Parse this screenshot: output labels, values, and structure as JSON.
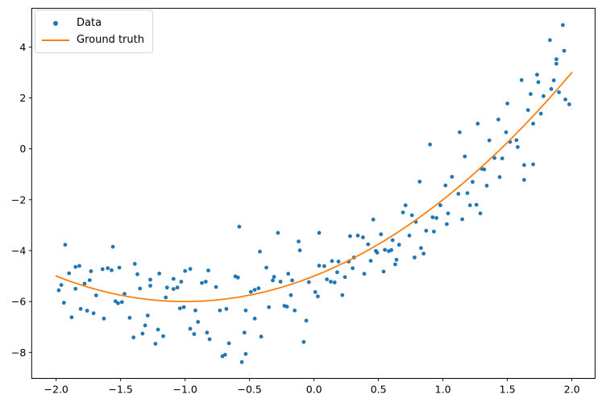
{
  "figure": {
    "background": "#ffffff",
    "accent_blue": "#1f77b4",
    "accent_orange": "#ff7f0e"
  },
  "chart_data": {
    "type": "scatter",
    "title": "",
    "xlabel": "",
    "ylabel": "",
    "grid": false,
    "legend_position": "upper left",
    "xlim": [
      -2.19,
      2.18
    ],
    "ylim": [
      -9.02,
      5.52
    ],
    "x_ticks": {
      "values": [
        -2.0,
        -1.5,
        -1.0,
        -0.5,
        0.0,
        0.5,
        1.0,
        1.5,
        2.0
      ],
      "labels": [
        "−2.0",
        "−1.5",
        "−1.0",
        "−0.5",
        "0.0",
        "0.5",
        "1.0",
        "1.5",
        "2.0"
      ]
    },
    "y_ticks": {
      "values": [
        4,
        2,
        0,
        -2,
        -4,
        -6,
        -8
      ],
      "labels": [
        "4",
        "2",
        "0",
        "−2",
        "−4",
        "−6",
        "−8"
      ]
    },
    "series": [
      {
        "name": "Data",
        "type": "scatter",
        "color": "#1f77b4",
        "marker": "dot",
        "points": [
          [
            -1.93,
            -3.77
          ],
          [
            -1.56,
            -3.85
          ],
          [
            -1.9,
            -4.89
          ],
          [
            -1.85,
            -4.64
          ],
          [
            -1.82,
            -4.6
          ],
          [
            -1.73,
            -4.81
          ],
          [
            -1.64,
            -4.73
          ],
          [
            -1.6,
            -4.69
          ],
          [
            -1.57,
            -4.77
          ],
          [
            -1.51,
            -4.67
          ],
          [
            -1.39,
            -4.52
          ],
          [
            -1.37,
            -4.93
          ],
          [
            -1.98,
            -5.56
          ],
          [
            -1.96,
            -5.35
          ],
          [
            -1.85,
            -5.5
          ],
          [
            -1.78,
            -5.3
          ],
          [
            -1.74,
            -5.16
          ],
          [
            -1.69,
            -5.76
          ],
          [
            -1.54,
            -5.99
          ],
          [
            -1.52,
            -6.07
          ],
          [
            -1.49,
            -6.02
          ],
          [
            -1.47,
            -5.7
          ],
          [
            -1.35,
            -5.49
          ],
          [
            -1.27,
            -5.38
          ],
          [
            -1.27,
            -5.14
          ],
          [
            -1.2,
            -4.9
          ],
          [
            -1.94,
            -6.05
          ],
          [
            -1.88,
            -6.62
          ],
          [
            -1.81,
            -6.29
          ],
          [
            -1.76,
            -6.36
          ],
          [
            -1.71,
            -6.46
          ],
          [
            -1.63,
            -6.67
          ],
          [
            -1.43,
            -6.64
          ],
          [
            -1.4,
            -7.41
          ],
          [
            -1.33,
            -7.26
          ],
          [
            -1.31,
            -6.94
          ],
          [
            -1.29,
            -6.55
          ],
          [
            -1.23,
            -7.66
          ],
          [
            -1.21,
            -7.1
          ],
          [
            -1.17,
            -7.36
          ],
          [
            -1.14,
            -5.45
          ],
          [
            -1.09,
            -5.51
          ],
          [
            -1.15,
            -5.84
          ],
          [
            -1.09,
            -5.11
          ],
          [
            -0.58,
            -3.06
          ],
          [
            -0.28,
            -3.3
          ],
          [
            -0.12,
            -3.64
          ],
          [
            -0.11,
            -3.99
          ],
          [
            -0.42,
            -4.04
          ],
          [
            -0.37,
            -4.67
          ],
          [
            -1.0,
            -4.8
          ],
          [
            -0.96,
            -4.72
          ],
          [
            -0.82,
            -4.78
          ],
          [
            -1.03,
            -5.22
          ],
          [
            -1.06,
            -5.45
          ],
          [
            -0.87,
            -5.27
          ],
          [
            -0.84,
            -5.22
          ],
          [
            -0.76,
            -5.43
          ],
          [
            -0.61,
            -5.01
          ],
          [
            -0.59,
            -5.06
          ],
          [
            -0.49,
            -5.62
          ],
          [
            -0.46,
            -5.54
          ],
          [
            -0.43,
            -5.48
          ],
          [
            -0.32,
            -5.17
          ],
          [
            -0.31,
            -5.03
          ],
          [
            -0.26,
            -5.22
          ],
          [
            -0.2,
            -4.91
          ],
          [
            -0.17,
            -5.17
          ],
          [
            -0.18,
            -5.75
          ],
          [
            -0.04,
            -5.24
          ],
          [
            0.01,
            -5.63
          ],
          [
            0.03,
            -5.8
          ],
          [
            -1.04,
            -6.27
          ],
          [
            -1.01,
            -6.22
          ],
          [
            -0.92,
            -6.35
          ],
          [
            -0.73,
            -6.35
          ],
          [
            -0.68,
            -6.29
          ],
          [
            -0.53,
            -6.35
          ],
          [
            -0.35,
            -6.22
          ],
          [
            -0.23,
            -6.17
          ],
          [
            -0.21,
            -6.2
          ],
          [
            -0.15,
            -6.35
          ],
          [
            -0.9,
            -6.8
          ],
          [
            -0.96,
            -7.07
          ],
          [
            -0.93,
            -7.28
          ],
          [
            -0.83,
            -7.22
          ],
          [
            -0.81,
            -7.48
          ],
          [
            -0.54,
            -7.22
          ],
          [
            -0.41,
            -7.38
          ],
          [
            -0.46,
            -6.67
          ],
          [
            -0.06,
            -6.75
          ],
          [
            -0.66,
            -7.64
          ],
          [
            -0.71,
            -8.15
          ],
          [
            -0.69,
            -8.09
          ],
          [
            -0.56,
            -8.38
          ],
          [
            -0.53,
            -8.06
          ],
          [
            -0.08,
            -7.59
          ],
          [
            0.71,
            -2.22
          ],
          [
            0.69,
            -2.5
          ],
          [
            0.76,
            -2.61
          ],
          [
            0.98,
            -2.22
          ],
          [
            0.92,
            -2.69
          ],
          [
            0.95,
            -2.72
          ],
          [
            1.04,
            -2.54
          ],
          [
            0.79,
            -2.87
          ],
          [
            1.03,
            -2.96
          ],
          [
            0.46,
            -2.78
          ],
          [
            0.87,
            -3.22
          ],
          [
            0.93,
            -3.25
          ],
          [
            0.04,
            -3.3
          ],
          [
            0.28,
            -3.43
          ],
          [
            0.34,
            -3.41
          ],
          [
            0.38,
            -3.48
          ],
          [
            0.52,
            -3.36
          ],
          [
            0.61,
            -3.59
          ],
          [
            0.74,
            -3.41
          ],
          [
            0.66,
            -3.77
          ],
          [
            0.42,
            -3.75
          ],
          [
            0.48,
            -4.01
          ],
          [
            0.49,
            -4.08
          ],
          [
            0.55,
            -3.97
          ],
          [
            0.58,
            -4.02
          ],
          [
            0.6,
            -3.98
          ],
          [
            0.64,
            -4.36
          ],
          [
            0.83,
            -3.9
          ],
          [
            0.85,
            -4.12
          ],
          [
            0.78,
            -4.27
          ],
          [
            0.31,
            -4.27
          ],
          [
            0.27,
            -4.43
          ],
          [
            0.44,
            -4.4
          ],
          [
            0.14,
            -4.41
          ],
          [
            0.19,
            -4.43
          ],
          [
            0.04,
            -4.59
          ],
          [
            0.08,
            -4.61
          ],
          [
            0.18,
            -4.85
          ],
          [
            0.24,
            -5.04
          ],
          [
            0.3,
            -4.69
          ],
          [
            0.39,
            -4.91
          ],
          [
            0.54,
            -4.82
          ],
          [
            0.63,
            -4.54
          ],
          [
            0.1,
            -5.13
          ],
          [
            0.13,
            -5.22
          ],
          [
            0.16,
            -5.25
          ],
          [
            0.22,
            -5.75
          ],
          [
            1.21,
            -2.22
          ],
          [
            1.26,
            -2.2
          ],
          [
            1.29,
            -2.54
          ],
          [
            1.15,
            -2.77
          ],
          [
            1.12,
            -1.77
          ],
          [
            1.19,
            -1.74
          ],
          [
            0.9,
            0.17
          ],
          [
            1.13,
            0.65
          ],
          [
            0.82,
            -1.29
          ],
          [
            1.07,
            -1.1
          ],
          [
            1.02,
            -1.44
          ],
          [
            1.93,
            4.86
          ],
          [
            1.83,
            4.27
          ],
          [
            1.94,
            3.85
          ],
          [
            1.88,
            3.52
          ],
          [
            1.88,
            3.34
          ],
          [
            1.73,
            2.91
          ],
          [
            1.74,
            2.62
          ],
          [
            1.61,
            2.7
          ],
          [
            1.86,
            2.69
          ],
          [
            1.84,
            2.35
          ],
          [
            1.9,
            2.22
          ],
          [
            1.68,
            2.15
          ],
          [
            1.78,
            2.07
          ],
          [
            1.95,
            1.94
          ],
          [
            1.98,
            1.75
          ],
          [
            1.5,
            1.78
          ],
          [
            1.66,
            1.52
          ],
          [
            1.76,
            1.38
          ],
          [
            1.43,
            1.15
          ],
          [
            1.27,
            0.99
          ],
          [
            1.7,
            0.99
          ],
          [
            1.49,
            0.65
          ],
          [
            1.36,
            0.33
          ],
          [
            1.52,
            0.27
          ],
          [
            1.57,
            0.34
          ],
          [
            1.58,
            0.07
          ],
          [
            1.17,
            -0.3
          ],
          [
            1.4,
            -0.36
          ],
          [
            1.46,
            -0.38
          ],
          [
            1.3,
            -0.78
          ],
          [
            1.32,
            -0.81
          ],
          [
            1.63,
            -0.64
          ],
          [
            1.7,
            -0.61
          ],
          [
            1.44,
            -1.11
          ],
          [
            1.63,
            -1.22
          ],
          [
            1.23,
            -1.3
          ],
          [
            1.34,
            -1.45
          ]
        ]
      },
      {
        "name": "Ground truth",
        "type": "line",
        "color": "#ff7f0e",
        "equation": "y = x^2 + 2x - 5",
        "coefficients": {
          "a": 1,
          "b": 2,
          "c": -5
        },
        "x_range": [
          -2,
          2
        ]
      }
    ]
  }
}
